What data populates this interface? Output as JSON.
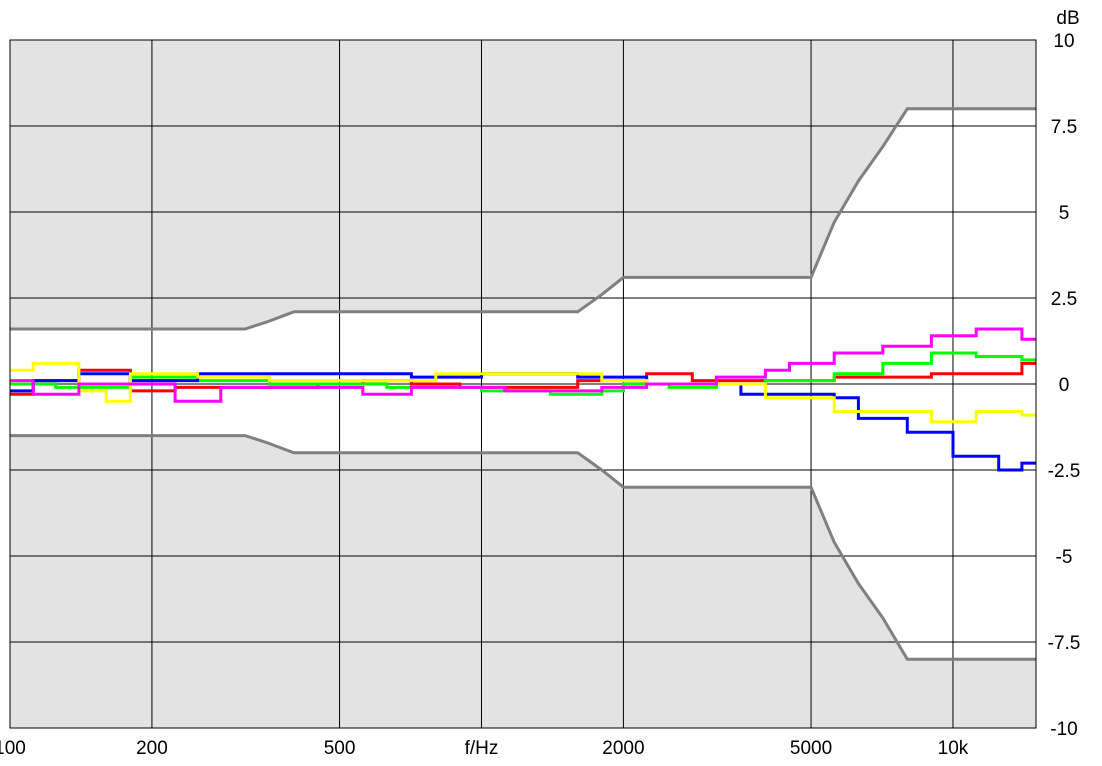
{
  "chart_data": {
    "type": "line",
    "title": "",
    "xlabel": "f/Hz",
    "ylabel": "dB",
    "x_scale": "log",
    "xlim": [
      100,
      15000
    ],
    "ylim": [
      -10,
      10
    ],
    "x_ticks": [
      {
        "value": 100,
        "label": "100"
      },
      {
        "value": 200,
        "label": "200"
      },
      {
        "value": 500,
        "label": "500"
      },
      {
        "value": 1000,
        "label": "f/Hz"
      },
      {
        "value": 2000,
        "label": "2000"
      },
      {
        "value": 5000,
        "label": "5000"
      },
      {
        "value": 10000,
        "label": "10k"
      }
    ],
    "y_ticks": [
      {
        "value": 10,
        "label": "10"
      },
      {
        "value": 7.5,
        "label": "7.5"
      },
      {
        "value": 5,
        "label": "5"
      },
      {
        "value": 2.5,
        "label": "2.5"
      },
      {
        "value": 0,
        "label": "0"
      },
      {
        "value": -2.5,
        "label": "-2.5"
      },
      {
        "value": -5,
        "label": "-5"
      },
      {
        "value": -7.5,
        "label": "-7.5"
      },
      {
        "value": -10,
        "label": "-10"
      }
    ],
    "grid": true,
    "band_fill_color": "#e3e3e3",
    "plot_background": "#ffffff",
    "grid_color": "#000000",
    "tolerance": {
      "color": "#808080",
      "upper": [
        [
          100,
          1.6
        ],
        [
          315,
          1.6
        ],
        [
          350,
          1.8
        ],
        [
          400,
          2.1
        ],
        [
          1600,
          2.1
        ],
        [
          1800,
          2.6
        ],
        [
          2000,
          3.1
        ],
        [
          5000,
          3.1
        ],
        [
          5600,
          4.7
        ],
        [
          6300,
          5.9
        ],
        [
          7100,
          6.9
        ],
        [
          8000,
          8.0
        ],
        [
          15000,
          8.0
        ]
      ],
      "lower": [
        [
          100,
          -1.5
        ],
        [
          315,
          -1.5
        ],
        [
          350,
          -1.7
        ],
        [
          400,
          -2.0
        ],
        [
          1600,
          -2.0
        ],
        [
          1800,
          -2.5
        ],
        [
          2000,
          -3.0
        ],
        [
          5000,
          -3.0
        ],
        [
          5600,
          -4.6
        ],
        [
          6300,
          -5.8
        ],
        [
          7100,
          -6.8
        ],
        [
          8000,
          -8.0
        ],
        [
          15000,
          -8.0
        ]
      ]
    },
    "x_bands": [
      100,
      112,
      125,
      140,
      160,
      180,
      200,
      224,
      250,
      280,
      315,
      355,
      400,
      450,
      500,
      560,
      630,
      710,
      800,
      900,
      1000,
      1120,
      1250,
      1400,
      1600,
      1800,
      2000,
      2240,
      2500,
      2800,
      3150,
      3550,
      4000,
      4500,
      5000,
      5600,
      6300,
      7100,
      8000,
      9000,
      10000,
      11200,
      12500,
      14000,
      15000
    ],
    "series": [
      {
        "color": "#ff0000",
        "values": [
          -0.3,
          0.1,
          0.1,
          0.4,
          0.4,
          -0.2,
          -0.2,
          -0.1,
          -0.1,
          -0.1,
          -0.1,
          -0.1,
          -0.1,
          0.0,
          0.0,
          0.1,
          0.1,
          0.0,
          0.0,
          -0.1,
          -0.1,
          -0.1,
          -0.1,
          -0.1,
          0.1,
          0.1,
          0.1,
          0.3,
          0.3,
          0.1,
          0.1,
          0.1,
          0.1,
          0.1,
          0.1,
          0.2,
          0.2,
          0.2,
          0.2,
          0.3,
          0.3,
          0.3,
          0.3,
          0.6
        ]
      },
      {
        "color": "#00ff00",
        "values": [
          0.0,
          0.0,
          -0.1,
          -0.1,
          -0.1,
          0.2,
          0.2,
          0.2,
          0.1,
          0.1,
          0.1,
          0.0,
          0.0,
          0.0,
          0.0,
          0.0,
          -0.1,
          -0.1,
          -0.1,
          -0.1,
          -0.2,
          -0.2,
          -0.2,
          -0.3,
          -0.3,
          -0.2,
          0.0,
          0.0,
          -0.1,
          -0.1,
          0.0,
          0.0,
          0.1,
          0.1,
          0.1,
          0.3,
          0.3,
          0.6,
          0.6,
          0.9,
          0.9,
          0.8,
          0.8,
          0.7
        ]
      },
      {
        "color": "#0000ff",
        "values": [
          -0.2,
          0.1,
          0.1,
          0.3,
          0.3,
          0.1,
          0.1,
          0.1,
          0.3,
          0.3,
          0.3,
          0.3,
          0.3,
          0.3,
          0.3,
          0.3,
          0.3,
          0.2,
          0.2,
          0.2,
          0.3,
          0.3,
          0.3,
          0.3,
          0.2,
          0.2,
          0.2,
          0.0,
          0.0,
          0.0,
          0.0,
          -0.3,
          -0.3,
          -0.3,
          -0.3,
          -0.4,
          -1.0,
          -1.0,
          -1.4,
          -1.4,
          -2.1,
          -2.1,
          -2.5,
          -2.3
        ]
      },
      {
        "color": "#ffff00",
        "values": [
          0.4,
          0.6,
          0.6,
          -0.2,
          -0.5,
          0.3,
          0.3,
          0.3,
          0.2,
          0.2,
          0.2,
          0.1,
          0.1,
          0.1,
          0.1,
          0.1,
          0.1,
          0.1,
          0.3,
          0.3,
          0.3,
          0.3,
          0.3,
          0.3,
          0.3,
          0.1,
          0.1,
          0.0,
          0.0,
          0.0,
          0.0,
          0.0,
          -0.4,
          -0.4,
          -0.4,
          -0.8,
          -0.8,
          -0.8,
          -0.8,
          -1.1,
          -1.1,
          -0.8,
          -0.8,
          -0.9
        ]
      },
      {
        "color": "#ff00ff",
        "values": [
          0.1,
          -0.3,
          -0.3,
          0.0,
          0.0,
          0.0,
          0.0,
          -0.5,
          -0.5,
          -0.1,
          -0.1,
          -0.1,
          -0.1,
          -0.1,
          -0.1,
          -0.3,
          -0.3,
          -0.1,
          -0.1,
          -0.1,
          -0.1,
          -0.2,
          -0.2,
          -0.2,
          -0.2,
          -0.1,
          -0.1,
          0.0,
          0.0,
          0.0,
          0.2,
          0.2,
          0.4,
          0.6,
          0.6,
          0.9,
          0.9,
          1.1,
          1.1,
          1.4,
          1.4,
          1.6,
          1.6,
          1.3
        ]
      }
    ]
  }
}
